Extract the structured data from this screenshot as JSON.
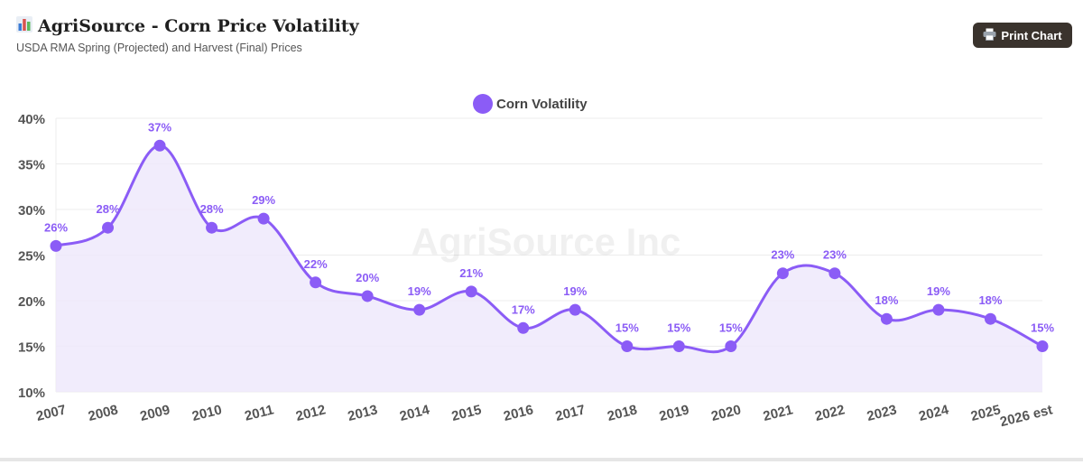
{
  "header": {
    "icon": "bar-chart-icon",
    "title": "AgriSource - Corn Price Volatility",
    "subtitle": "USDA RMA Spring (Projected) and Harvest (Final) Prices"
  },
  "toolbar": {
    "print_icon": "printer-icon",
    "print_label": "Print Chart"
  },
  "watermark": "AgriSource Inc",
  "colors": {
    "line": "#8b5cf6",
    "fill": "#efe9fc",
    "label": "#8b5cf6",
    "grid": "#ececec",
    "button": "#3a332d"
  },
  "chart_data": {
    "type": "area",
    "categories": [
      "2007",
      "2008",
      "2009",
      "2010",
      "2011",
      "2012",
      "2013",
      "2014",
      "2015",
      "2016",
      "2017",
      "2018",
      "2019",
      "2020",
      "2021",
      "2022",
      "2023",
      "2024",
      "2025",
      "2026 est"
    ],
    "series": [
      {
        "name": "Corn Volatility",
        "values": [
          26,
          28,
          37,
          28,
          29,
          22,
          20.5,
          19,
          21,
          17,
          19,
          15,
          15,
          15,
          23,
          23,
          18,
          19,
          18,
          15
        ],
        "labels": [
          "26%",
          "28%",
          "37%",
          "28%",
          "29%",
          "22%",
          "20%",
          "19%",
          "21%",
          "17%",
          "19%",
          "15%",
          "15%",
          "15%",
          "23%",
          "23%",
          "18%",
          "19%",
          "18%",
          "15%"
        ]
      }
    ],
    "ylim": [
      10,
      40
    ],
    "yticks": [
      "10%",
      "15%",
      "20%",
      "25%",
      "30%",
      "35%",
      "40%"
    ],
    "ytick_values": [
      10,
      15,
      20,
      25,
      30,
      35,
      40
    ],
    "legend_position": "top-center",
    "grid": true,
    "smooth": true
  }
}
